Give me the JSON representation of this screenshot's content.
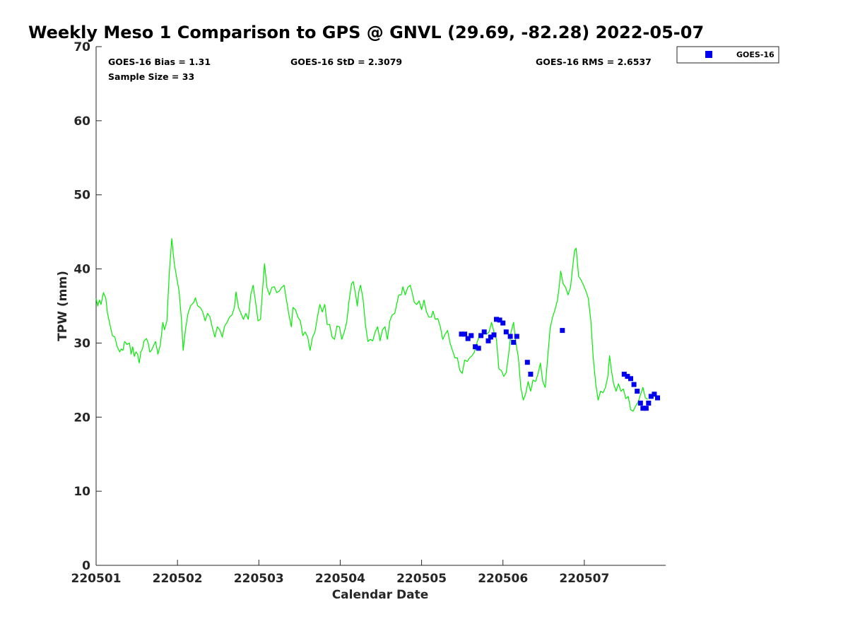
{
  "chart_data": {
    "type": "line",
    "title": "Weekly Meso 1 Comparison to GPS @ GNVL (29.69, -82.28) 2022-05-07",
    "xlabel": "Calendar Date",
    "ylabel": "TPW (mm)",
    "ylim": [
      0,
      70
    ],
    "yticks": [
      0,
      10,
      20,
      30,
      40,
      50,
      60,
      70
    ],
    "xlim": [
      0,
      7
    ],
    "xticks": [
      0,
      1,
      2,
      3,
      4,
      5,
      6
    ],
    "xtick_labels": [
      "220501",
      "220502",
      "220503",
      "220504",
      "220505",
      "220506",
      "220507"
    ],
    "grid": false,
    "legend_position": "top-right",
    "stats": {
      "bias": "GOES-16 Bias = 1.31",
      "sample": "Sample Size = 33",
      "std": "GOES-16 StD = 2.3079",
      "rms": "GOES-16 RMS = 2.6537"
    },
    "series": [
      {
        "type": "line",
        "color": "#00ee00",
        "points": [
          [
            0.0,
            36.0
          ],
          [
            0.02,
            35.0
          ],
          [
            0.04,
            35.8
          ],
          [
            0.06,
            35.2
          ],
          [
            0.09,
            36.8
          ],
          [
            0.12,
            36.0
          ],
          [
            0.14,
            34.0
          ],
          [
            0.17,
            32.5
          ],
          [
            0.2,
            31.0
          ],
          [
            0.23,
            30.8
          ],
          [
            0.26,
            29.5
          ],
          [
            0.29,
            28.8
          ],
          [
            0.31,
            29.2
          ],
          [
            0.33,
            29.0
          ],
          [
            0.35,
            30.2
          ],
          [
            0.38,
            29.8
          ],
          [
            0.41,
            30.0
          ],
          [
            0.43,
            28.5
          ],
          [
            0.45,
            29.5
          ],
          [
            0.47,
            28.2
          ],
          [
            0.49,
            28.8
          ],
          [
            0.51,
            28.5
          ],
          [
            0.53,
            27.3
          ],
          [
            0.55,
            28.8
          ],
          [
            0.57,
            29.2
          ],
          [
            0.59,
            30.3
          ],
          [
            0.62,
            30.6
          ],
          [
            0.64,
            30.0
          ],
          [
            0.66,
            28.8
          ],
          [
            0.68,
            29.0
          ],
          [
            0.7,
            29.5
          ],
          [
            0.73,
            30.2
          ],
          [
            0.76,
            28.5
          ],
          [
            0.79,
            29.8
          ],
          [
            0.82,
            32.8
          ],
          [
            0.84,
            31.8
          ],
          [
            0.87,
            33.0
          ],
          [
            0.9,
            39.5
          ],
          [
            0.93,
            44.1
          ],
          [
            0.96,
            40.8
          ],
          [
            0.98,
            39.5
          ],
          [
            1.02,
            37.0
          ],
          [
            1.05,
            33.0
          ],
          [
            1.07,
            29.0
          ],
          [
            1.1,
            32.0
          ],
          [
            1.13,
            34.0
          ],
          [
            1.16,
            35.0
          ],
          [
            1.2,
            35.5
          ],
          [
            1.22,
            36.1
          ],
          [
            1.25,
            35.0
          ],
          [
            1.28,
            34.8
          ],
          [
            1.31,
            34.2
          ],
          [
            1.34,
            33.0
          ],
          [
            1.37,
            34.0
          ],
          [
            1.4,
            33.5
          ],
          [
            1.43,
            32.0
          ],
          [
            1.46,
            30.8
          ],
          [
            1.49,
            32.2
          ],
          [
            1.52,
            31.8
          ],
          [
            1.55,
            30.8
          ],
          [
            1.58,
            32.3
          ],
          [
            1.61,
            32.8
          ],
          [
            1.64,
            33.5
          ],
          [
            1.67,
            33.8
          ],
          [
            1.7,
            34.8
          ],
          [
            1.72,
            36.9
          ],
          [
            1.75,
            34.8
          ],
          [
            1.78,
            34.0
          ],
          [
            1.81,
            33.2
          ],
          [
            1.84,
            34.0
          ],
          [
            1.87,
            33.2
          ],
          [
            1.9,
            36.5
          ],
          [
            1.93,
            37.8
          ],
          [
            1.96,
            35.5
          ],
          [
            1.99,
            33.0
          ],
          [
            2.02,
            33.2
          ],
          [
            2.05,
            37.8
          ],
          [
            2.07,
            40.7
          ],
          [
            2.1,
            37.5
          ],
          [
            2.13,
            36.5
          ],
          [
            2.16,
            37.5
          ],
          [
            2.19,
            37.6
          ],
          [
            2.22,
            36.8
          ],
          [
            2.25,
            37.0
          ],
          [
            2.28,
            37.5
          ],
          [
            2.31,
            37.8
          ],
          [
            2.34,
            35.8
          ],
          [
            2.37,
            33.8
          ],
          [
            2.4,
            32.2
          ],
          [
            2.42,
            34.8
          ],
          [
            2.45,
            34.5
          ],
          [
            2.48,
            33.5
          ],
          [
            2.51,
            33.0
          ],
          [
            2.54,
            31.0
          ],
          [
            2.57,
            31.5
          ],
          [
            2.6,
            30.8
          ],
          [
            2.63,
            29.0
          ],
          [
            2.66,
            30.8
          ],
          [
            2.69,
            31.5
          ],
          [
            2.72,
            33.5
          ],
          [
            2.75,
            35.2
          ],
          [
            2.78,
            34.2
          ],
          [
            2.81,
            35.2
          ],
          [
            2.84,
            32.5
          ],
          [
            2.87,
            32.5
          ],
          [
            2.9,
            30.8
          ],
          [
            2.93,
            30.5
          ],
          [
            2.96,
            32.3
          ],
          [
            2.99,
            32.2
          ],
          [
            3.02,
            30.5
          ],
          [
            3.05,
            31.5
          ],
          [
            3.08,
            32.8
          ],
          [
            3.11,
            35.8
          ],
          [
            3.14,
            38.0
          ],
          [
            3.16,
            38.3
          ],
          [
            3.19,
            36.5
          ],
          [
            3.21,
            35.0
          ],
          [
            3.23,
            37.0
          ],
          [
            3.25,
            37.8
          ],
          [
            3.28,
            36.0
          ],
          [
            3.31,
            32.5
          ],
          [
            3.34,
            30.2
          ],
          [
            3.37,
            30.5
          ],
          [
            3.4,
            30.3
          ],
          [
            3.43,
            31.5
          ],
          [
            3.46,
            32.2
          ],
          [
            3.49,
            30.3
          ],
          [
            3.52,
            31.8
          ],
          [
            3.55,
            32.2
          ],
          [
            3.58,
            30.5
          ],
          [
            3.61,
            33.0
          ],
          [
            3.64,
            33.8
          ],
          [
            3.67,
            34.0
          ],
          [
            3.7,
            35.5
          ],
          [
            3.72,
            36.5
          ],
          [
            3.75,
            36.5
          ],
          [
            3.77,
            37.6
          ],
          [
            3.8,
            36.5
          ],
          [
            3.83,
            37.5
          ],
          [
            3.86,
            37.8
          ],
          [
            3.88,
            37.0
          ],
          [
            3.91,
            35.5
          ],
          [
            3.94,
            35.2
          ],
          [
            3.97,
            35.7
          ],
          [
            4.0,
            34.5
          ],
          [
            4.03,
            35.8
          ],
          [
            4.06,
            34.2
          ],
          [
            4.09,
            33.5
          ],
          [
            4.12,
            33.5
          ],
          [
            4.14,
            34.3
          ],
          [
            4.17,
            33.2
          ],
          [
            4.2,
            33.3
          ],
          [
            4.23,
            32.2
          ],
          [
            4.26,
            30.5
          ],
          [
            4.29,
            31.2
          ],
          [
            4.32,
            31.7
          ],
          [
            4.35,
            30.0
          ],
          [
            4.38,
            29.0
          ],
          [
            4.41,
            28.0
          ],
          [
            4.44,
            28.0
          ],
          [
            4.47,
            26.3
          ],
          [
            4.5,
            25.9
          ],
          [
            4.53,
            27.7
          ],
          [
            4.56,
            27.5
          ],
          [
            4.59,
            28.0
          ],
          [
            4.62,
            28.3
          ],
          [
            4.65,
            28.8
          ],
          [
            4.68,
            30.0
          ],
          [
            4.71,
            31.0
          ],
          [
            4.74,
            30.8
          ],
          [
            4.77,
            31.5
          ],
          [
            4.8,
            31.2
          ],
          [
            4.83,
            31.5
          ],
          [
            4.86,
            32.8
          ],
          [
            4.89,
            31.5
          ],
          [
            4.92,
            30.5
          ],
          [
            4.95,
            26.5
          ],
          [
            4.98,
            26.3
          ],
          [
            5.01,
            25.5
          ],
          [
            5.04,
            26.0
          ],
          [
            5.07,
            28.5
          ],
          [
            5.1,
            31.5
          ],
          [
            5.13,
            32.8
          ],
          [
            5.16,
            30.0
          ],
          [
            5.19,
            28.0
          ],
          [
            5.22,
            24.0
          ],
          [
            5.25,
            22.3
          ],
          [
            5.28,
            23.2
          ],
          [
            5.31,
            24.8
          ],
          [
            5.34,
            23.5
          ],
          [
            5.37,
            25.0
          ],
          [
            5.4,
            24.8
          ],
          [
            5.43,
            25.8
          ],
          [
            5.46,
            27.3
          ],
          [
            5.49,
            24.8
          ],
          [
            5.52,
            24.0
          ],
          [
            5.55,
            28.0
          ],
          [
            5.58,
            32.0
          ],
          [
            5.61,
            33.5
          ],
          [
            5.64,
            34.5
          ],
          [
            5.67,
            35.8
          ],
          [
            5.69,
            37.5
          ],
          [
            5.71,
            39.7
          ],
          [
            5.74,
            38.0
          ],
          [
            5.77,
            37.5
          ],
          [
            5.8,
            36.5
          ],
          [
            5.83,
            37.5
          ],
          [
            5.86,
            40.5
          ],
          [
            5.88,
            42.5
          ],
          [
            5.9,
            42.8
          ],
          [
            5.93,
            39.0
          ],
          [
            5.96,
            38.5
          ],
          [
            5.99,
            37.8
          ],
          [
            6.02,
            37.0
          ],
          [
            6.05,
            36.0
          ],
          [
            6.08,
            33.0
          ],
          [
            6.11,
            28.0
          ],
          [
            6.14,
            24.5
          ],
          [
            6.17,
            22.3
          ],
          [
            6.2,
            23.5
          ],
          [
            6.23,
            23.3
          ],
          [
            6.26,
            24.0
          ],
          [
            6.29,
            25.5
          ],
          [
            6.31,
            28.3
          ],
          [
            6.33,
            26.5
          ],
          [
            6.36,
            24.5
          ],
          [
            6.39,
            23.5
          ],
          [
            6.42,
            24.5
          ],
          [
            6.45,
            23.5
          ],
          [
            6.48,
            23.8
          ],
          [
            6.51,
            22.5
          ],
          [
            6.54,
            22.8
          ],
          [
            6.57,
            21.0
          ],
          [
            6.6,
            20.8
          ],
          [
            6.63,
            21.5
          ],
          [
            6.66,
            22.0
          ],
          [
            6.69,
            23.0
          ],
          [
            6.72,
            24.0
          ],
          [
            6.75,
            22.6
          ],
          [
            6.78,
            22.4
          ]
        ]
      },
      {
        "name": "GOES-16",
        "type": "scatter",
        "color": "#0000ee",
        "points": [
          [
            4.49,
            31.2
          ],
          [
            4.53,
            31.2
          ],
          [
            4.57,
            30.6
          ],
          [
            4.61,
            31.0
          ],
          [
            4.66,
            29.5
          ],
          [
            4.7,
            29.3
          ],
          [
            4.73,
            31.0
          ],
          [
            4.77,
            31.5
          ],
          [
            4.82,
            30.3
          ],
          [
            4.85,
            30.8
          ],
          [
            4.89,
            31.1
          ],
          [
            4.92,
            33.2
          ],
          [
            4.96,
            33.1
          ],
          [
            5.0,
            32.7
          ],
          [
            5.04,
            31.5
          ],
          [
            5.09,
            30.9
          ],
          [
            5.13,
            30.1
          ],
          [
            5.17,
            30.9
          ],
          [
            5.3,
            27.4
          ],
          [
            5.34,
            25.8
          ],
          [
            5.73,
            31.7
          ],
          [
            6.49,
            25.8
          ],
          [
            6.53,
            25.5
          ],
          [
            6.57,
            25.2
          ],
          [
            6.61,
            24.4
          ],
          [
            6.65,
            23.5
          ],
          [
            6.69,
            21.9
          ],
          [
            6.72,
            21.2
          ],
          [
            6.76,
            21.2
          ],
          [
            6.79,
            21.9
          ],
          [
            6.82,
            22.8
          ],
          [
            6.86,
            23.1
          ],
          [
            6.9,
            22.6
          ]
        ]
      }
    ]
  }
}
